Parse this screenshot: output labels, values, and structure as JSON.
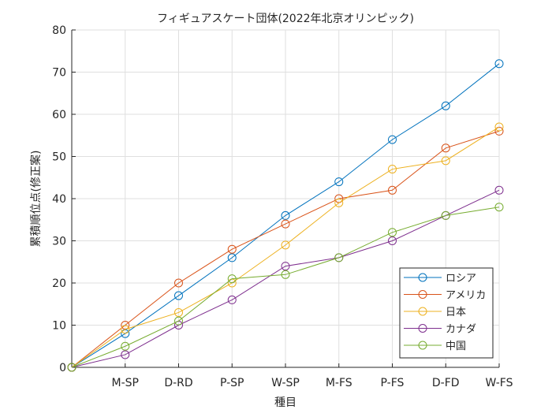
{
  "chart_data": {
    "type": "line",
    "title": "フィギュアスケート団体(2022年北京オリンピック)",
    "xlabel": "種目",
    "ylabel": "累積順位点(修正案)",
    "x_ticks": [
      "",
      "M-SP",
      "D-RD",
      "P-SP",
      "W-SP",
      "M-FS",
      "P-FS",
      "D-FD",
      "W-FS"
    ],
    "ylim": [
      0,
      80
    ],
    "y_ticks": [
      0,
      10,
      20,
      30,
      40,
      50,
      60,
      70,
      80
    ],
    "grid": true,
    "legend_position": "bottom-right",
    "marker": "open-circle",
    "series": [
      {
        "name": "ロシア",
        "color": "#0072BD",
        "values": [
          0,
          8,
          17,
          26,
          36,
          44,
          54,
          62,
          72
        ]
      },
      {
        "name": "アメリカ",
        "color": "#D95319",
        "values": [
          0,
          10,
          20,
          28,
          34,
          40,
          42,
          52,
          56
        ]
      },
      {
        "name": "日本",
        "color": "#EDB120",
        "values": [
          0,
          9,
          13,
          20,
          29,
          39,
          47,
          49,
          57
        ]
      },
      {
        "name": "カナダ",
        "color": "#7E2F8E",
        "values": [
          0,
          3,
          10,
          16,
          24,
          26,
          30,
          36,
          42
        ]
      },
      {
        "name": "中国",
        "color": "#77AC30",
        "values": [
          0,
          5,
          11,
          21,
          22,
          26,
          32,
          36,
          38
        ]
      }
    ]
  }
}
